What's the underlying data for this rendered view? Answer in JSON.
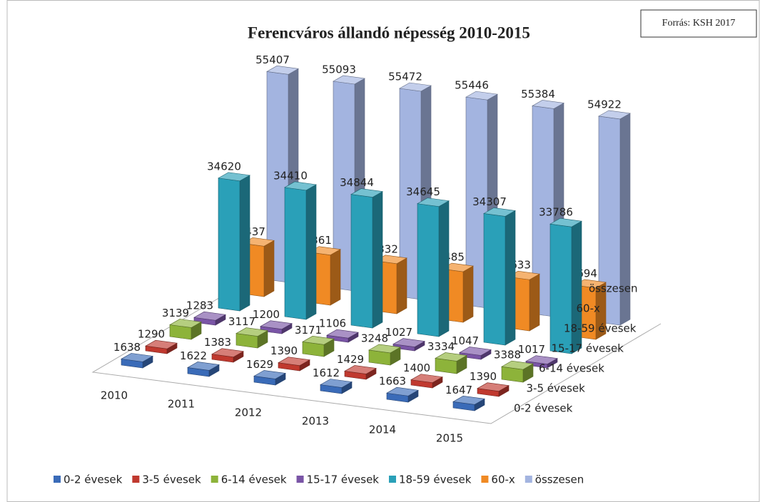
{
  "source": "Forrás: KSH 2017",
  "chart_data": {
    "type": "bar3d",
    "title": "Ferencváros állandó népesség 2010-2015",
    "categories": [
      "2010",
      "2011",
      "2012",
      "2013",
      "2014",
      "2015"
    ],
    "legend": "bottom",
    "series": [
      {
        "name": "0-2 évesek",
        "color": "#3a6bb8",
        "values": [
          1638,
          1622,
          1629,
          1612,
          1663,
          1647
        ]
      },
      {
        "name": "3-5 évesek",
        "color": "#c0392f",
        "values": [
          1290,
          1383,
          1390,
          1429,
          1400,
          1390
        ]
      },
      {
        "name": "6-14 évesek",
        "color": "#8db33a",
        "values": [
          3139,
          3117,
          3171,
          3248,
          3334,
          3388
        ]
      },
      {
        "name": "15-17 évesek",
        "color": "#7a55a6",
        "values": [
          1283,
          1200,
          1106,
          1027,
          1047,
          1017
        ]
      },
      {
        "name": "18-59 évesek",
        "color": "#2aa0b8",
        "values": [
          34620,
          34410,
          34844,
          34645,
          34307,
          33786
        ]
      },
      {
        "name": "60-x",
        "color": "#f08a24",
        "values": [
          13437,
          13361,
          13332,
          13485,
          13633,
          13694
        ]
      },
      {
        "name": "összesen",
        "color": "#a3b4e0",
        "values": [
          55407,
          55093,
          55472,
          55446,
          55384,
          54922
        ]
      }
    ]
  }
}
